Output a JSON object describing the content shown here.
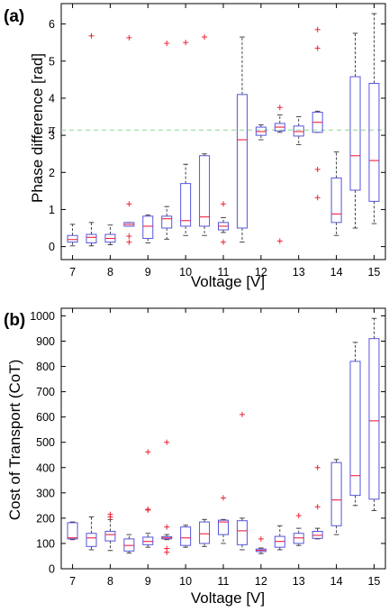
{
  "colors": {
    "box": "#5555dd",
    "median": "#ee2244",
    "whisker": "#333333",
    "outlier": "#ee2233",
    "pi_line": "#99dd99",
    "axis": "#000000"
  },
  "chart_data": [
    {
      "type": "box",
      "panel_label": "(a)",
      "xlabel": "Voltage [V]",
      "ylabel": "Phase difference [rad]",
      "x_ticks": [
        "7",
        "8",
        "9",
        "10",
        "11",
        "12",
        "13",
        "14",
        "15"
      ],
      "xlim": [
        6.7,
        15.3
      ],
      "ylim": [
        -0.35,
        6.55
      ],
      "y_ticks": [
        0,
        1,
        2,
        3,
        4,
        5,
        6
      ],
      "reference_line": {
        "y": 3.14159,
        "label": "π",
        "style": "dashed"
      },
      "grid": false,
      "boxes": [
        {
          "x": 7.0,
          "whislo": 0.02,
          "q1": 0.12,
          "med": 0.19,
          "q3": 0.3,
          "whishi": 0.6,
          "fliers": []
        },
        {
          "x": 7.5,
          "whislo": 0.02,
          "q1": 0.1,
          "med": 0.25,
          "q3": 0.33,
          "whishi": 0.65,
          "fliers": [
            5.68
          ]
        },
        {
          "x": 8.0,
          "whislo": 0.05,
          "q1": 0.12,
          "med": 0.22,
          "q3": 0.33,
          "whishi": 0.58,
          "fliers": []
        },
        {
          "x": 8.5,
          "whislo": 0.55,
          "q1": 0.55,
          "med": 0.6,
          "q3": 0.65,
          "whishi": 0.65,
          "fliers": [
            5.63,
            1.15,
            0.28,
            0.12
          ]
        },
        {
          "x": 9.0,
          "whislo": 0.1,
          "q1": 0.22,
          "med": 0.55,
          "q3": 0.82,
          "whishi": 0.85,
          "fliers": []
        },
        {
          "x": 9.5,
          "whislo": 0.2,
          "q1": 0.5,
          "med": 0.75,
          "q3": 0.82,
          "whishi": 1.08,
          "fliers": [
            5.48
          ]
        },
        {
          "x": 10.0,
          "whislo": 0.3,
          "q1": 0.55,
          "med": 0.7,
          "q3": 1.7,
          "whishi": 2.22,
          "fliers": [
            5.5
          ]
        },
        {
          "x": 10.5,
          "whislo": 0.3,
          "q1": 0.55,
          "med": 0.8,
          "q3": 2.45,
          "whishi": 2.5,
          "fliers": [
            5.65
          ]
        },
        {
          "x": 11.0,
          "whislo": 0.38,
          "q1": 0.45,
          "med": 0.55,
          "q3": 0.65,
          "whishi": 0.78,
          "fliers": [
            1.15,
            0.12
          ]
        },
        {
          "x": 11.5,
          "whislo": 0.12,
          "q1": 0.5,
          "med": 2.88,
          "q3": 4.1,
          "whishi": 5.65,
          "fliers": []
        },
        {
          "x": 12.0,
          "whislo": 2.88,
          "q1": 3.0,
          "med": 3.1,
          "q3": 3.22,
          "whishi": 3.28,
          "fliers": []
        },
        {
          "x": 12.5,
          "whislo": 3.08,
          "q1": 3.12,
          "med": 3.22,
          "q3": 3.32,
          "whishi": 3.55,
          "fliers": [
            3.75,
            0.15
          ]
        },
        {
          "x": 13.0,
          "whislo": 2.75,
          "q1": 2.98,
          "med": 3.1,
          "q3": 3.25,
          "whishi": 3.5,
          "fliers": []
        },
        {
          "x": 13.5,
          "whislo": 3.08,
          "q1": 3.08,
          "med": 3.35,
          "q3": 3.62,
          "whishi": 3.65,
          "fliers": [
            5.85,
            5.35,
            2.08,
            1.32
          ]
        },
        {
          "x": 14.0,
          "whislo": 0.3,
          "q1": 0.65,
          "med": 0.88,
          "q3": 1.85,
          "whishi": 2.55,
          "fliers": []
        },
        {
          "x": 14.5,
          "whislo": 0.5,
          "q1": 1.52,
          "med": 2.45,
          "q3": 4.58,
          "whishi": 5.75,
          "fliers": []
        },
        {
          "x": 15.0,
          "whislo": 0.62,
          "q1": 1.22,
          "med": 2.32,
          "q3": 4.4,
          "whishi": 6.28,
          "fliers": []
        }
      ]
    },
    {
      "type": "box",
      "panel_label": "(b)",
      "xlabel": "Voltage [V]",
      "ylabel": "Cost of Transport (CoT)",
      "x_ticks": [
        "7",
        "8",
        "9",
        "10",
        "11",
        "12",
        "13",
        "14",
        "15"
      ],
      "xlim": [
        6.7,
        15.3
      ],
      "ylim": [
        0,
        1030
      ],
      "y_ticks": [
        0,
        100,
        200,
        300,
        400,
        500,
        600,
        700,
        800,
        900,
        1000
      ],
      "grid": false,
      "boxes": [
        {
          "x": 7.0,
          "whislo": 115,
          "q1": 118,
          "med": 122,
          "q3": 182,
          "whishi": 185,
          "fliers": []
        },
        {
          "x": 7.5,
          "whislo": 75,
          "q1": 88,
          "med": 122,
          "q3": 140,
          "whishi": 205,
          "fliers": []
        },
        {
          "x": 8.0,
          "whislo": 72,
          "q1": 110,
          "med": 135,
          "q3": 148,
          "whishi": 195,
          "fliers": [
            215,
            205
          ]
        },
        {
          "x": 8.5,
          "whislo": 62,
          "q1": 70,
          "med": 92,
          "q3": 118,
          "whishi": 135,
          "fliers": []
        },
        {
          "x": 9.0,
          "whislo": 85,
          "q1": 95,
          "med": 108,
          "q3": 125,
          "whishi": 140,
          "fliers": [
            462,
            235,
            232
          ]
        },
        {
          "x": 9.5,
          "whislo": 115,
          "q1": 118,
          "med": 122,
          "q3": 127,
          "whishi": 135,
          "fliers": [
            500,
            165,
            80,
            65
          ]
        },
        {
          "x": 10.0,
          "whislo": 85,
          "q1": 92,
          "med": 122,
          "q3": 165,
          "whishi": 172,
          "fliers": []
        },
        {
          "x": 10.5,
          "whislo": 88,
          "q1": 100,
          "med": 138,
          "q3": 185,
          "whishi": 195,
          "fliers": []
        },
        {
          "x": 11.0,
          "whislo": 100,
          "q1": 135,
          "med": 185,
          "q3": 192,
          "whishi": 195,
          "fliers": [
            280
          ]
        },
        {
          "x": 11.5,
          "whislo": 75,
          "q1": 95,
          "med": 150,
          "q3": 190,
          "whishi": 200,
          "fliers": [
            610
          ]
        },
        {
          "x": 12.0,
          "whislo": 60,
          "q1": 68,
          "med": 73,
          "q3": 78,
          "whishi": 82,
          "fliers": [
            118
          ]
        },
        {
          "x": 12.5,
          "whislo": 75,
          "q1": 85,
          "med": 108,
          "q3": 128,
          "whishi": 170,
          "fliers": []
        },
        {
          "x": 13.0,
          "whislo": 92,
          "q1": 100,
          "med": 122,
          "q3": 140,
          "whishi": 160,
          "fliers": [
            210
          ]
        },
        {
          "x": 13.5,
          "whislo": 118,
          "q1": 120,
          "med": 132,
          "q3": 148,
          "whishi": 160,
          "fliers": [
            400,
            245
          ]
        },
        {
          "x": 14.0,
          "whislo": 135,
          "q1": 170,
          "med": 272,
          "q3": 420,
          "whishi": 432,
          "fliers": []
        },
        {
          "x": 14.5,
          "whislo": 250,
          "q1": 290,
          "med": 368,
          "q3": 820,
          "whishi": 895,
          "fliers": []
        },
        {
          "x": 15.0,
          "whislo": 230,
          "q1": 275,
          "med": 585,
          "q3": 910,
          "whishi": 990,
          "fliers": []
        }
      ]
    }
  ]
}
